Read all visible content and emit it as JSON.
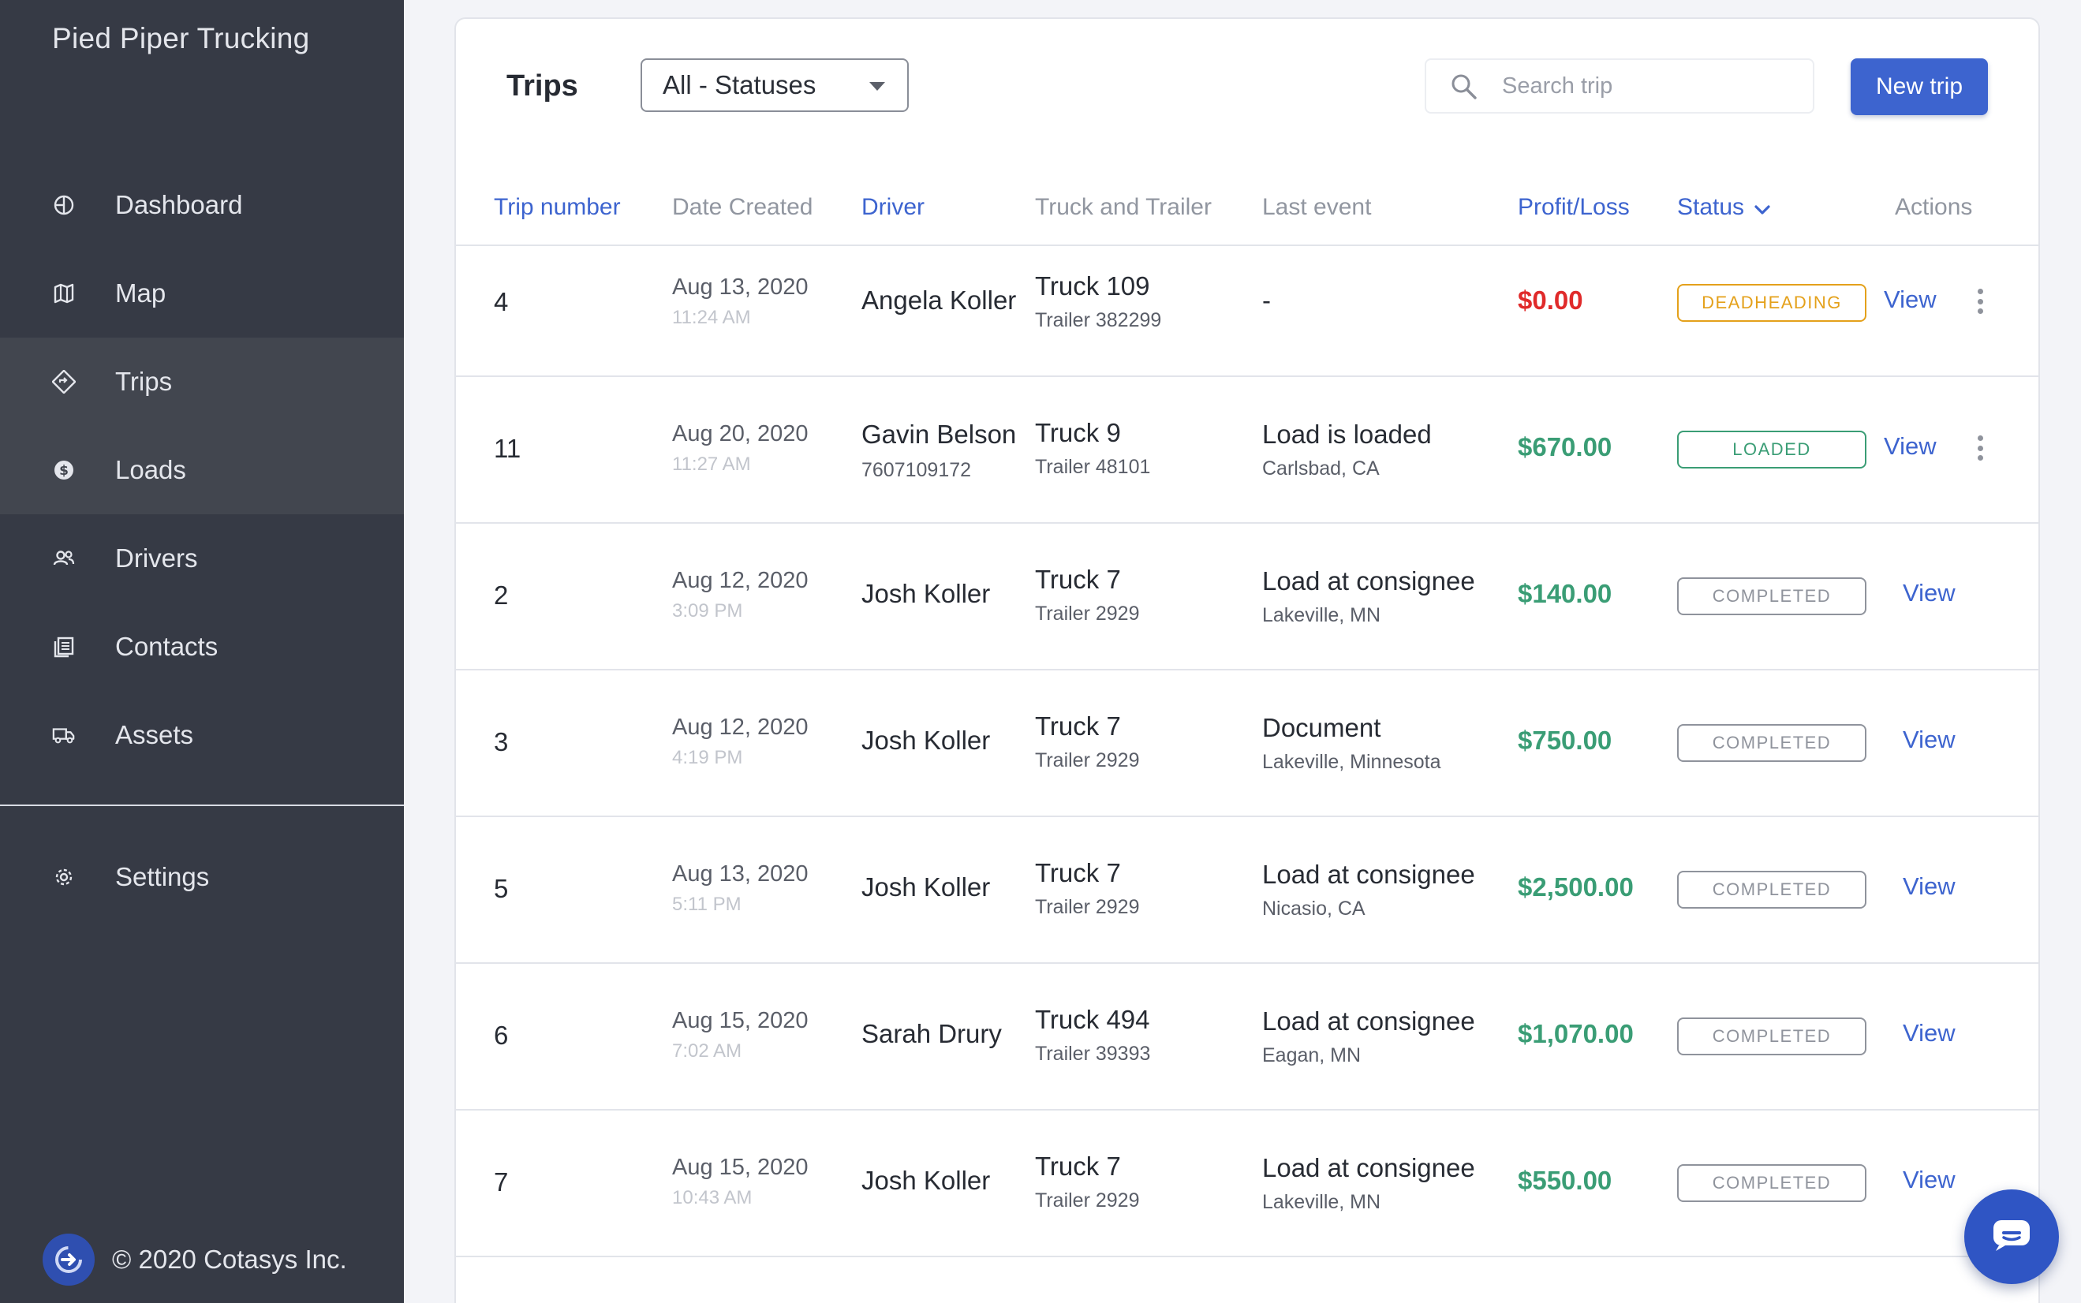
{
  "sidebar": {
    "company": "Pied Piper Trucking",
    "items": [
      {
        "label": "Dashboard",
        "icon": "dashboard-icon"
      },
      {
        "label": "Map",
        "icon": "map-icon"
      },
      {
        "label": "Trips",
        "icon": "trips-icon"
      },
      {
        "label": "Loads",
        "icon": "loads-icon"
      },
      {
        "label": "Drivers",
        "icon": "drivers-icon"
      },
      {
        "label": "Contacts",
        "icon": "contacts-icon"
      },
      {
        "label": "Assets",
        "icon": "truck-icon"
      }
    ],
    "settings": {
      "label": "Settings",
      "icon": "gear-icon"
    },
    "footer": "© 2020 Cotasys Inc."
  },
  "toolbar": {
    "title": "Trips",
    "status_filter": "All - Statuses",
    "search_placeholder": "Search trip",
    "new_trip_label": "New trip"
  },
  "table": {
    "headers": {
      "trip_number": "Trip number",
      "date_created": "Date Created",
      "driver": "Driver",
      "truck_trailer": "Truck and Trailer",
      "last_event": "Last event",
      "profit_loss": "Profit/Loss",
      "status": "Status",
      "actions": "Actions"
    },
    "view_label": "View",
    "rows": [
      {
        "num": "4",
        "date": "Aug 13, 2020",
        "time": "11:24 AM",
        "driver": "Angela Koller",
        "phone": "",
        "truck": "Truck 109",
        "trailer": "Trailer 382299",
        "event": "-",
        "location": "",
        "profit": "$0.00",
        "profit_type": "loss",
        "status": "DEADHEADING",
        "status_type": "deadheading",
        "menu": true
      },
      {
        "num": "11",
        "date": "Aug 20, 2020",
        "time": "11:27 AM",
        "driver": "Gavin Belson",
        "phone": "7607109172",
        "truck": "Truck 9",
        "trailer": "Trailer 48101",
        "event": "Load is loaded",
        "location": "Carlsbad, CA",
        "profit": "$670.00",
        "profit_type": "gain",
        "status": "LOADED",
        "status_type": "loaded",
        "menu": true
      },
      {
        "num": "2",
        "date": "Aug 12, 2020",
        "time": "3:09 PM",
        "driver": "Josh Koller",
        "phone": "",
        "truck": "Truck 7",
        "trailer": "Trailer 2929",
        "event": "Load at consignee",
        "location": "Lakeville, MN",
        "profit": "$140.00",
        "profit_type": "gain",
        "status": "COMPLETED",
        "status_type": "completed",
        "menu": false
      },
      {
        "num": "3",
        "date": "Aug 12, 2020",
        "time": "4:19 PM",
        "driver": "Josh Koller",
        "phone": "",
        "truck": "Truck 7",
        "trailer": "Trailer 2929",
        "event": "Document",
        "location": "Lakeville, Minnesota",
        "profit": "$750.00",
        "profit_type": "gain",
        "status": "COMPLETED",
        "status_type": "completed",
        "menu": false
      },
      {
        "num": "5",
        "date": "Aug 13, 2020",
        "time": "5:11 PM",
        "driver": "Josh Koller",
        "phone": "",
        "truck": "Truck 7",
        "trailer": "Trailer 2929",
        "event": "Load at consignee",
        "location": "Nicasio, CA",
        "profit": "$2,500.00",
        "profit_type": "gain",
        "status": "COMPLETED",
        "status_type": "completed",
        "menu": false
      },
      {
        "num": "6",
        "date": "Aug 15, 2020",
        "time": "7:02 AM",
        "driver": "Sarah Drury",
        "phone": "",
        "truck": "Truck 494",
        "trailer": "Trailer 39393",
        "event": "Load at consignee",
        "location": "Eagan, MN",
        "profit": "$1,070.00",
        "profit_type": "gain",
        "status": "COMPLETED",
        "status_type": "completed",
        "menu": false
      },
      {
        "num": "7",
        "date": "Aug 15, 2020",
        "time": "10:43 AM",
        "driver": "Josh Koller",
        "phone": "",
        "truck": "Truck 7",
        "trailer": "Trailer 2929",
        "event": "Load at consignee",
        "location": "Lakeville, MN",
        "profit": "$550.00",
        "profit_type": "gain",
        "status": "COMPLETED",
        "status_type": "completed",
        "menu": false
      }
    ]
  },
  "colors": {
    "sidebar_bg": "#363a45",
    "accent": "#3d64cf",
    "loss": "#e02a2a",
    "gain": "#3a9d75",
    "deadheading": "#e4a11b"
  },
  "chat_widget": {
    "icon": "chat-icon"
  }
}
